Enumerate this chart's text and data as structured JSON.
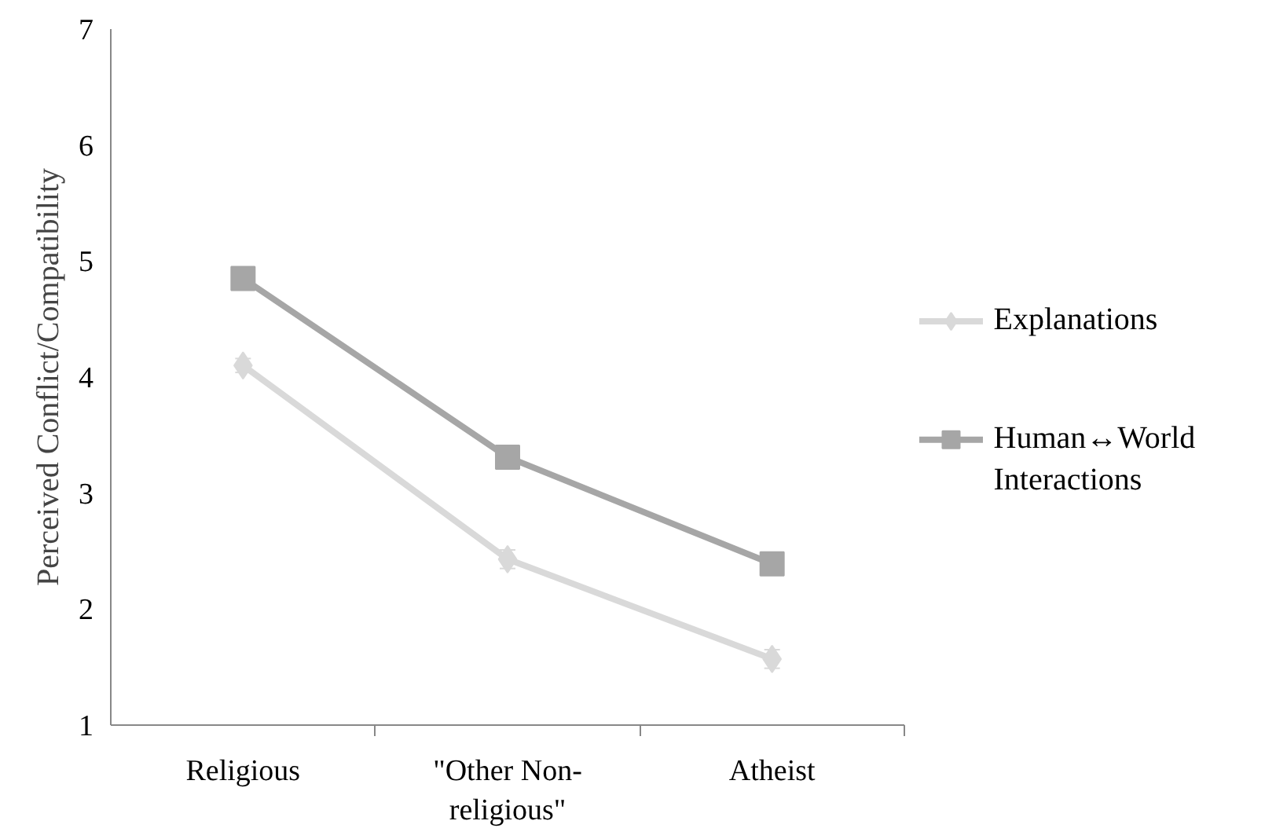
{
  "chart_data": {
    "type": "line",
    "ylabel": "Perceived Conflict/Compatibility",
    "categories": [
      "Religious",
      "\"Other Non-\nreligious\"",
      "Atheist"
    ],
    "ylim": [
      1,
      7
    ],
    "yticks": [
      1,
      2,
      3,
      4,
      5,
      6,
      7
    ],
    "grid": false,
    "legend": "right",
    "series": [
      {
        "name": "Explanations",
        "color": "#d9d9d9",
        "marker": "diamond",
        "values": [
          4.1,
          2.43,
          1.57
        ],
        "errors": [
          0.06,
          0.08,
          0.08
        ]
      },
      {
        "name": "Human↔World\nInteractions",
        "color": "#a6a6a6",
        "marker": "square",
        "values": [
          4.85,
          3.31,
          2.39
        ],
        "errors": [
          null,
          0.05,
          0.05
        ]
      }
    ]
  }
}
